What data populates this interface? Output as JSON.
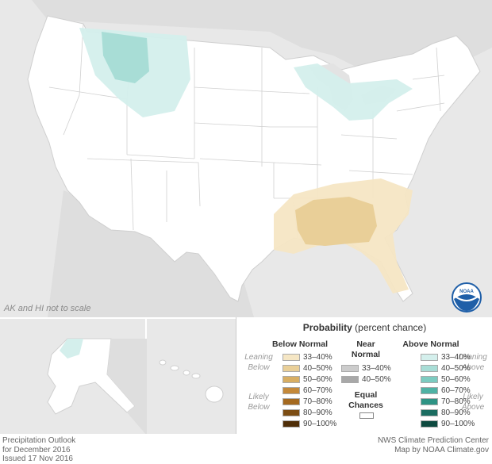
{
  "map": {
    "scale_note": "AK and HI not to scale",
    "agency_logo": "noaa-logo"
  },
  "legend": {
    "title_bold": "Probability",
    "title_rest": " (percent chance)",
    "below_header": "Below Normal",
    "near_header_line1": "Near",
    "near_header_line2": "Normal",
    "above_header": "Above Normal",
    "leaning": "Leaning",
    "below": "Below",
    "above": "Above",
    "likely": "Likely",
    "equal_line1": "Equal",
    "equal_line2": "Chances",
    "below_rows": [
      {
        "label": "33–40%",
        "color": "#f5e6c4"
      },
      {
        "label": "40–50%",
        "color": "#e9cf98"
      },
      {
        "label": "50–60%",
        "color": "#d8ae63"
      },
      {
        "label": "60–70%",
        "color": "#c4893a"
      },
      {
        "label": "70–80%",
        "color": "#a4691f"
      },
      {
        "label": "80–90%",
        "color": "#7c4d14"
      },
      {
        "label": "90–100%",
        "color": "#4f2e08"
      }
    ],
    "near_rows": [
      {
        "label": "33–40%",
        "color": "#cccccc"
      },
      {
        "label": "40–50%",
        "color": "#a8a8a8"
      }
    ],
    "above_rows": [
      {
        "label": "33–40%",
        "color": "#d4efec"
      },
      {
        "label": "40–50%",
        "color": "#a8ddd6"
      },
      {
        "label": "50–60%",
        "color": "#7ccbc0"
      },
      {
        "label": "60–70%",
        "color": "#4fb2a4"
      },
      {
        "label": "70–80%",
        "color": "#2e9384"
      },
      {
        "label": "80–90%",
        "color": "#1b6d61"
      },
      {
        "label": "90–100%",
        "color": "#0e4a40"
      }
    ]
  },
  "footer": {
    "left_line1": "Precipitation Outlook",
    "left_line2": "for December 2016",
    "left_line3": "Issued 17 Nov 2016",
    "right_line1": "NWS Climate Prediction Center",
    "right_line2": "Map by NOAA Climate.gov"
  }
}
